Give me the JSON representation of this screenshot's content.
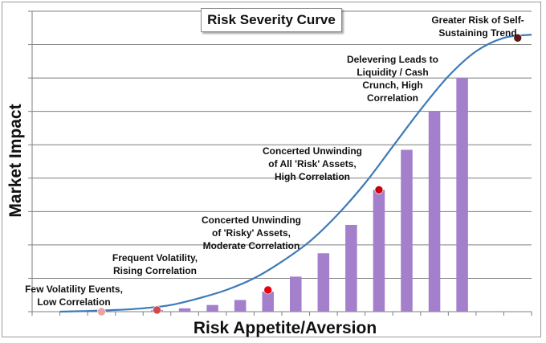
{
  "chart_data": {
    "type": "bar",
    "title": "Risk Severity Curve",
    "xlabel": "Risk Appetite/Aversion",
    "ylabel": "Market Impact",
    "grid": true,
    "ylim": [
      0,
      9
    ],
    "bar_values": [
      0.05,
      0.1,
      0.2,
      0.35,
      0.6,
      1.05,
      1.75,
      2.6,
      3.65,
      4.85,
      6.0,
      7.0
    ],
    "curve": [
      [
        1,
        0.0
      ],
      [
        2,
        0.02
      ],
      [
        3,
        0.05
      ],
      [
        4,
        0.1
      ],
      [
        5,
        0.2
      ],
      [
        6,
        0.4
      ],
      [
        7,
        0.65
      ],
      [
        8,
        1.0
      ],
      [
        9,
        1.5
      ],
      [
        10,
        2.1
      ],
      [
        11,
        2.9
      ],
      [
        12,
        3.85
      ],
      [
        13,
        4.95
      ],
      [
        14,
        6.05
      ],
      [
        15,
        7.05
      ],
      [
        16,
        7.8
      ],
      [
        17,
        8.2
      ],
      [
        18,
        8.3
      ]
    ],
    "markers": [
      {
        "x": 2.5,
        "y": 0.0,
        "label": "Few Volatility Events,\nLow Correlation",
        "color": "#e8a3a3"
      },
      {
        "x": 4.5,
        "y": 0.05,
        "label": "Frequent Volatility,\nRising Correlation",
        "color": "#d14a4a"
      },
      {
        "x": 8.5,
        "y": 0.65,
        "label": "Concerted Unwinding\nof 'Risky' Assets,\nModerate Correlation",
        "color": "#e8000b"
      },
      {
        "x": 12.5,
        "y": 3.65,
        "label": "Concerted Unwinding\nof All 'Risk' Assets,\nHigh Correlation",
        "color": "#c8000a"
      },
      {
        "x": 17.5,
        "y": 8.2,
        "label": "Greater Risk of Self-\nSustaining Trend",
        "color": "#5a1a1a"
      }
    ],
    "annotations": [
      {
        "label": "Delevering Leads to\nLiquidity / Cash\nCrunch, High\nCorrelation"
      }
    ],
    "colors": {
      "bars": "#a47fcc",
      "curve": "#3d7ab8",
      "grid": "#7f7f7f"
    }
  }
}
